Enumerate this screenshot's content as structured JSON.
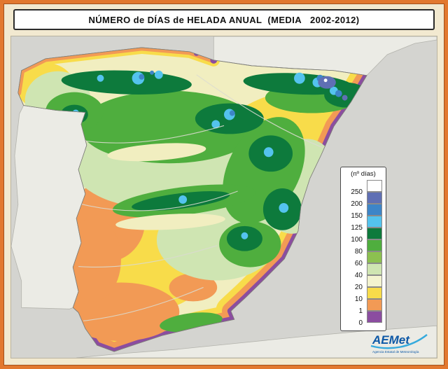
{
  "header": {
    "title": "NÚMERO de DÍAS de HELADA ANUAL  (MEDIA   2002-2012)"
  },
  "legend": {
    "title": "(nº días)",
    "items": [
      {
        "label": "250",
        "color": "#ffffff"
      },
      {
        "label": "200",
        "color": "#5f6fb4"
      },
      {
        "label": "150",
        "color": "#3d85c8"
      },
      {
        "label": "125",
        "color": "#54c3ee"
      },
      {
        "label": "100",
        "color": "#0d7a3c"
      },
      {
        "label": "80",
        "color": "#4fae3e"
      },
      {
        "label": "60",
        "color": "#8cc050"
      },
      {
        "label": "40",
        "color": "#cfe5b2"
      },
      {
        "label": "20",
        "color": "#f3f3cf"
      },
      {
        "label": "10",
        "color": "#f8dc4a"
      },
      {
        "label": "1",
        "color": "#f29a55"
      },
      {
        "label": "0",
        "color": "#8b4da0"
      }
    ]
  },
  "logo": {
    "text": "AEMet",
    "tagline": "Agencia Estatal de Meteorología"
  },
  "palette": {
    "frame_border": "#e2782f",
    "page_background": "#f2e9d0",
    "sea": "#d4d4d0",
    "neighbor_land": "#ebebe5",
    "spain_base": "#f1eec0",
    "logo_blue": "#0d58a6",
    "logo_swoosh": "#35aadd"
  }
}
